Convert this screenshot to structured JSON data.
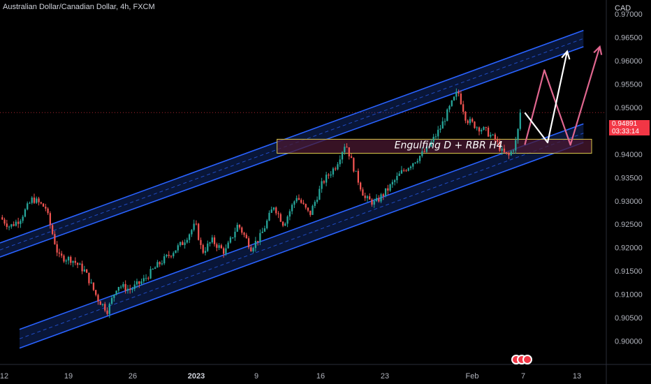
{
  "header": {
    "symbol_title": "Australian Dollar/Canadian Dollar, 4h, FXCM",
    "currency": "CAD"
  },
  "price_badge": {
    "price": "0.94891",
    "countdown": "03:33:14"
  },
  "colors": {
    "up": "#26a69a",
    "down": "#ef5350",
    "channel": "#2962ff",
    "zone_border": "#d9c84a",
    "zone_fill": "#4a1830",
    "arrow_pink": "#e0678f",
    "arrow_white": "#ffffff",
    "badge": "#f23645"
  },
  "annotations": {
    "zone_label": "Engulfing D + RBR H4"
  },
  "chart_data": {
    "type": "candlestick",
    "symbol": "AUDCAD",
    "timeframe": "4h",
    "ylim": [
      0.895,
      0.973
    ],
    "y_ticks": [
      0.9,
      0.905,
      0.91,
      0.915,
      0.92,
      0.925,
      0.93,
      0.935,
      0.94,
      0.945,
      0.95,
      0.955,
      0.96,
      0.965,
      0.97
    ],
    "y_tick_labels": [
      "0.90000",
      "0.90500",
      "0.91000",
      "0.91500",
      "0.92000",
      "0.92500",
      "0.93000",
      "0.93500",
      "0.94000",
      "0.94500",
      "0.95000",
      "0.95500",
      "0.96000",
      "0.96500",
      "0.97000"
    ],
    "x_ticks": [
      {
        "label": "12",
        "bold": false
      },
      {
        "label": "19",
        "bold": false
      },
      {
        "label": "26",
        "bold": false
      },
      {
        "label": "2023",
        "bold": true
      },
      {
        "label": "9",
        "bold": false
      },
      {
        "label": "16",
        "bold": false
      },
      {
        "label": "23",
        "bold": false
      },
      {
        "label": "Feb",
        "bold": false
      },
      {
        "label": "7",
        "bold": false
      },
      {
        "label": "13",
        "bold": false
      }
    ],
    "last_price": 0.94891,
    "close_path": [
      [
        0,
        0.9265
      ],
      [
        6,
        0.9245
      ],
      [
        12,
        0.926
      ],
      [
        20,
        0.9305
      ],
      [
        28,
        0.9285
      ],
      [
        36,
        0.918
      ],
      [
        44,
        0.9175
      ],
      [
        52,
        0.915
      ],
      [
        60,
        0.909
      ],
      [
        66,
        0.9065
      ],
      [
        72,
        0.912
      ],
      [
        80,
        0.911
      ],
      [
        88,
        0.913
      ],
      [
        96,
        0.916
      ],
      [
        104,
        0.9185
      ],
      [
        112,
        0.921
      ],
      [
        120,
        0.925
      ],
      [
        124,
        0.919
      ],
      [
        130,
        0.9215
      ],
      [
        138,
        0.919
      ],
      [
        146,
        0.925
      ],
      [
        154,
        0.92
      ],
      [
        160,
        0.9225
      ],
      [
        168,
        0.929
      ],
      [
        174,
        0.925
      ],
      [
        182,
        0.931
      ],
      [
        190,
        0.927
      ],
      [
        198,
        0.934
      ],
      [
        206,
        0.9375
      ],
      [
        212,
        0.9425
      ],
      [
        218,
        0.936
      ],
      [
        224,
        0.9305
      ],
      [
        230,
        0.9295
      ],
      [
        238,
        0.9325
      ],
      [
        246,
        0.936
      ],
      [
        254,
        0.9385
      ],
      [
        262,
        0.941
      ],
      [
        270,
        0.9455
      ],
      [
        276,
        0.95
      ],
      [
        281,
        0.9535
      ],
      [
        286,
        0.9475
      ],
      [
        292,
        0.946
      ],
      [
        298,
        0.945
      ],
      [
        304,
        0.943
      ],
      [
        308,
        0.9405
      ],
      [
        312,
        0.9395
      ],
      [
        316,
        0.942
      ],
      [
        320,
        0.9489
      ]
    ],
    "channel": {
      "upper_line_1": [
        [
          0,
          0.921
        ],
        [
          358,
          0.9665
        ]
      ],
      "upper_line_2": [
        [
          0,
          0.918
        ],
        [
          358,
          0.963
        ]
      ],
      "lower_line_1": [
        [
          12,
          0.9025
        ],
        [
          358,
          0.9465
        ]
      ],
      "lower_line_2": [
        [
          12,
          0.8985
        ],
        [
          358,
          0.9425
        ]
      ]
    },
    "zone": {
      "from_x": 170,
      "to_x": 363,
      "top": 0.9432,
      "bottom": 0.9402
    },
    "projection_pink": [
      [
        322,
        0.942
      ],
      [
        334,
        0.958
      ],
      [
        350,
        0.942
      ],
      [
        368,
        0.963
      ]
    ],
    "projection_white": [
      [
        322,
        0.9489
      ],
      [
        336,
        0.9425
      ],
      [
        348,
        0.962
      ]
    ]
  }
}
